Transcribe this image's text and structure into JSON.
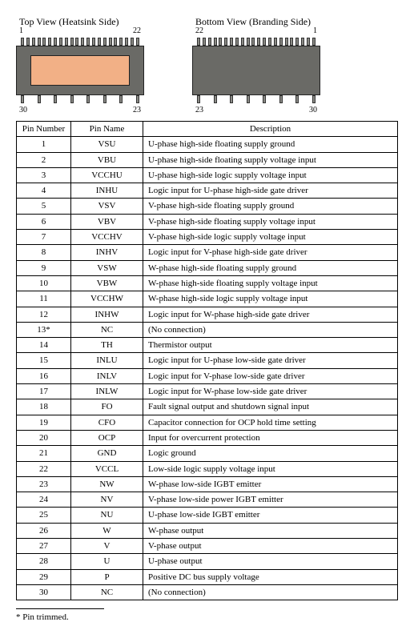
{
  "views": {
    "top": {
      "title": "Top View (Heatsink Side)",
      "top_left_pin": "1",
      "top_right_pin": "22",
      "bot_left_pin": "30",
      "bot_right_pin": "23",
      "show_pad": true
    },
    "bottom": {
      "title": "Bottom View (Branding Side)",
      "top_left_pin": "22",
      "top_right_pin": "1",
      "bot_left_pin": "23",
      "bot_right_pin": "30",
      "show_pad": false
    },
    "leads_top_count": 22,
    "leads_bot_count": 8,
    "colors": {
      "body": "#6a6a66",
      "pad": "#f2b086",
      "lead": "#8a8a85"
    }
  },
  "table": {
    "headers": {
      "num": "Pin Number",
      "name": "Pin Name",
      "desc": "Description"
    },
    "rows": [
      {
        "num": "1",
        "name": "VSU",
        "desc": "U-phase high-side floating supply ground"
      },
      {
        "num": "2",
        "name": "VBU",
        "desc": "U-phase high-side floating supply voltage input"
      },
      {
        "num": "3",
        "name": "VCCHU",
        "desc": "U-phase high-side logic supply voltage input"
      },
      {
        "num": "4",
        "name": "INHU",
        "desc": "Logic input for U-phase high-side gate driver"
      },
      {
        "num": "5",
        "name": "VSV",
        "desc": "V-phase high-side floating supply ground"
      },
      {
        "num": "6",
        "name": "VBV",
        "desc": "V-phase high-side floating supply voltage input"
      },
      {
        "num": "7",
        "name": "VCCHV",
        "desc": "V-phase high-side logic supply voltage input"
      },
      {
        "num": "8",
        "name": "INHV",
        "desc": "Logic input for V-phase high-side gate driver"
      },
      {
        "num": "9",
        "name": "VSW",
        "desc": "W-phase high-side floating supply ground"
      },
      {
        "num": "10",
        "name": "VBW",
        "desc": "W-phase high-side floating supply voltage input"
      },
      {
        "num": "11",
        "name": "VCCHW",
        "desc": "W-phase high-side logic supply voltage input"
      },
      {
        "num": "12",
        "name": "INHW",
        "desc": "Logic input for W-phase high-side gate driver"
      },
      {
        "num": "13*",
        "name": "NC",
        "desc": "(No connection)"
      },
      {
        "num": "14",
        "name": "TH",
        "desc": "Thermistor output"
      },
      {
        "num": "15",
        "name": "INLU",
        "desc": "Logic input for U-phase low-side gate driver"
      },
      {
        "num": "16",
        "name": "INLV",
        "desc": "Logic input for V-phase low-side gate driver"
      },
      {
        "num": "17",
        "name": "INLW",
        "desc": "Logic input for W-phase low-side gate driver"
      },
      {
        "num": "18",
        "name": "FO",
        "desc": "Fault signal output and shutdown signal input"
      },
      {
        "num": "19",
        "name": "CFO",
        "desc": "Capacitor connection for OCP hold time setting"
      },
      {
        "num": "20",
        "name": "OCP",
        "desc": "Input for overcurrent protection"
      },
      {
        "num": "21",
        "name": "GND",
        "desc": "Logic ground"
      },
      {
        "num": "22",
        "name": "VCCL",
        "desc": "Low-side logic supply voltage input"
      },
      {
        "num": "23",
        "name": "NW",
        "desc": "W-phase low-side IGBT emitter"
      },
      {
        "num": "24",
        "name": "NV",
        "desc": "V-phase low-side power IGBT emitter"
      },
      {
        "num": "25",
        "name": "NU",
        "desc": "U-phase low-side IGBT emitter"
      },
      {
        "num": "26",
        "name": "W",
        "desc": "W-phase output"
      },
      {
        "num": "27",
        "name": "V",
        "desc": "V-phase output"
      },
      {
        "num": "28",
        "name": "U",
        "desc": "U-phase output"
      },
      {
        "num": "29",
        "name": "P",
        "desc": "Positive DC bus supply voltage"
      },
      {
        "num": "30",
        "name": "NC",
        "desc": "(No connection)"
      }
    ]
  },
  "footnote": "*  Pin trimmed."
}
